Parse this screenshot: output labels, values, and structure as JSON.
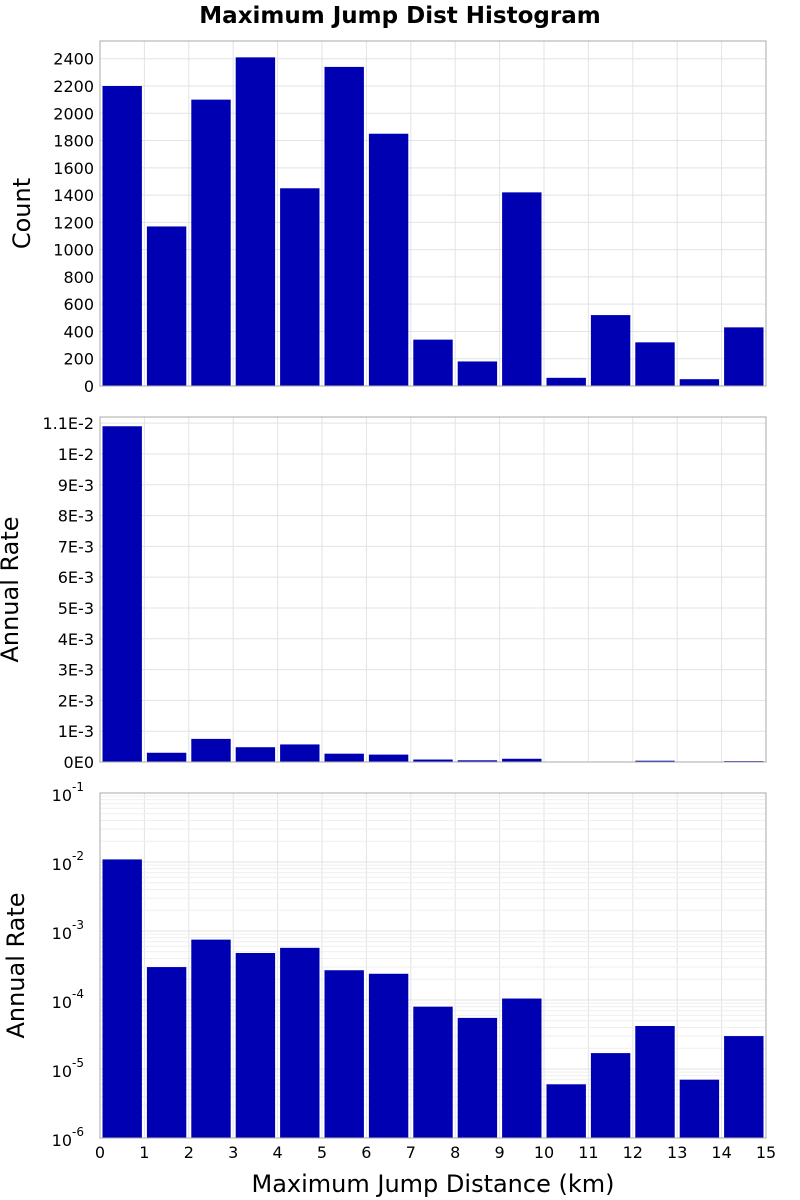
{
  "chart_data": [
    {
      "type": "bar",
      "title": "Maximum Jump Dist Histogram",
      "xlabel": "",
      "ylabel": "Count",
      "xlim": [
        0,
        15
      ],
      "ylim": [
        0,
        2530
      ],
      "yscale": "linear",
      "grid": true,
      "bin_width": 1,
      "bin_centers": [
        0.5,
        1.5,
        2.5,
        3.5,
        4.5,
        5.5,
        6.5,
        7.5,
        8.5,
        9.5,
        10.5,
        11.5,
        12.5,
        13.5,
        14.5
      ],
      "values": [
        2200,
        1170,
        2100,
        2410,
        1450,
        2340,
        1850,
        340,
        180,
        1420,
        60,
        520,
        320,
        50,
        430
      ],
      "yticks": [
        0,
        200,
        400,
        600,
        800,
        1000,
        1200,
        1400,
        1600,
        1800,
        2000,
        2200,
        2400
      ],
      "ytick_labels": [
        "0",
        "200",
        "400",
        "600",
        "800",
        "1000",
        "1200",
        "1400",
        "1600",
        "1800",
        "2000",
        "2200",
        "2400"
      ]
    },
    {
      "type": "bar",
      "title": "",
      "xlabel": "",
      "ylabel": "Annual Rate",
      "xlim": [
        0,
        15
      ],
      "ylim": [
        0,
        0.0112
      ],
      "yscale": "linear",
      "grid": true,
      "bin_width": 1,
      "bin_centers": [
        0.5,
        1.5,
        2.5,
        3.5,
        4.5,
        5.5,
        6.5,
        7.5,
        8.5,
        9.5,
        10.5,
        11.5,
        12.5,
        13.5,
        14.5
      ],
      "values": [
        0.0109,
        0.0003,
        0.00075,
        0.00048,
        0.00057,
        0.00027,
        0.00024,
        8e-05,
        5.5e-05,
        0.000105,
        6e-06,
        1.7e-05,
        4.2e-05,
        7e-06,
        3e-05
      ],
      "yticks": [
        0,
        0.001,
        0.002,
        0.003,
        0.004,
        0.005,
        0.006,
        0.007,
        0.008,
        0.009,
        0.01,
        0.011
      ],
      "ytick_labels": [
        "0E0",
        "1E-3",
        "2E-3",
        "3E-3",
        "4E-3",
        "5E-3",
        "6E-3",
        "7E-3",
        "8E-3",
        "9E-3",
        "1E-2",
        "1.1E-2"
      ]
    },
    {
      "type": "bar",
      "title": "",
      "xlabel": "Maximum Jump Distance (km)",
      "ylabel": "Annual Rate",
      "xlim": [
        0,
        15
      ],
      "ylim": [
        1e-06,
        0.1
      ],
      "yscale": "log",
      "grid": true,
      "bin_width": 1,
      "bin_centers": [
        0.5,
        1.5,
        2.5,
        3.5,
        4.5,
        5.5,
        6.5,
        7.5,
        8.5,
        9.5,
        10.5,
        11.5,
        12.5,
        13.5,
        14.5
      ],
      "values": [
        0.0109,
        0.0003,
        0.00075,
        0.00048,
        0.00057,
        0.00027,
        0.00024,
        8e-05,
        5.5e-05,
        0.000105,
        6e-06,
        1.7e-05,
        4.2e-05,
        7e-06,
        3e-05
      ],
      "ytick_exponents": [
        -6,
        -5,
        -4,
        -3,
        -2,
        -1
      ],
      "ytick_base": "10",
      "xticks": [
        0,
        1,
        2,
        3,
        4,
        5,
        6,
        7,
        8,
        9,
        10,
        11,
        12,
        13,
        14,
        15
      ],
      "xtick_labels": [
        "0",
        "1",
        "2",
        "3",
        "4",
        "5",
        "6",
        "7",
        "8",
        "9",
        "10",
        "11",
        "12",
        "13",
        "14",
        "15"
      ]
    }
  ],
  "colors": {
    "bar": "#0000b3",
    "grid": "#e3e3e3",
    "frame": "#aaaaaa"
  }
}
